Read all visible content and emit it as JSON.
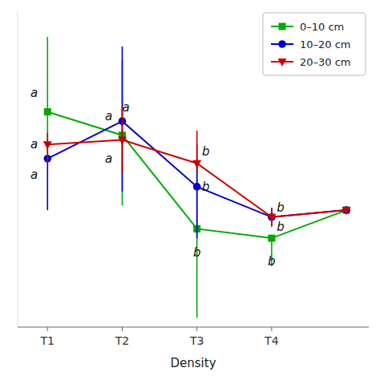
{
  "chart_data": {
    "type": "line",
    "x": [
      1,
      2,
      3,
      4,
      5
    ],
    "xlim": [
      0.6,
      5.3
    ],
    "xticks": [
      {
        "value": 1,
        "label": "T1"
      },
      {
        "value": 2,
        "label": "T2"
      },
      {
        "value": 3,
        "label": "T3"
      },
      {
        "value": 4,
        "label": "T4"
      }
    ],
    "ylim": [
      1.8,
      3.15
    ],
    "xlabel": "Density",
    "tick_labels": "x",
    "grid": false,
    "legend": "upper right",
    "series": [
      {
        "name": "0–10 cm",
        "color": "#00aa00",
        "marker": "square",
        "values": [
          2.72,
          2.62,
          2.22,
          2.18,
          2.3
        ],
        "yerr_up": [
          0.32,
          0.32,
          0.28,
          0.0,
          0.0
        ],
        "yerr_dn": [
          0.18,
          0.3,
          0.38,
          0.12,
          0.0
        ],
        "annotations": [
          "a",
          "a",
          "b",
          "b",
          null
        ]
      },
      {
        "name": "10–20 cm",
        "color": "#0000cc",
        "marker": "circle",
        "values": [
          2.52,
          2.68,
          2.4,
          2.27,
          2.3
        ],
        "yerr_up": [
          0.0,
          0.32,
          0.18,
          0.04,
          0.0
        ],
        "yerr_dn": [
          0.22,
          0.3,
          0.22,
          0.04,
          0.0
        ],
        "annotations": [
          "a",
          "a",
          "b",
          "b",
          null
        ]
      },
      {
        "name": "20–30 cm",
        "color": "#cc0000",
        "marker": "triangle-down",
        "values": [
          2.58,
          2.6,
          2.5,
          2.27,
          2.3
        ],
        "yerr_up": [
          0.05,
          0.14,
          0.14,
          0.04,
          0.0
        ],
        "yerr_dn": [
          0.08,
          0.14,
          0.04,
          0.04,
          0.0
        ],
        "annotations": [
          "a",
          "a",
          "b",
          "b",
          null
        ]
      }
    ]
  }
}
